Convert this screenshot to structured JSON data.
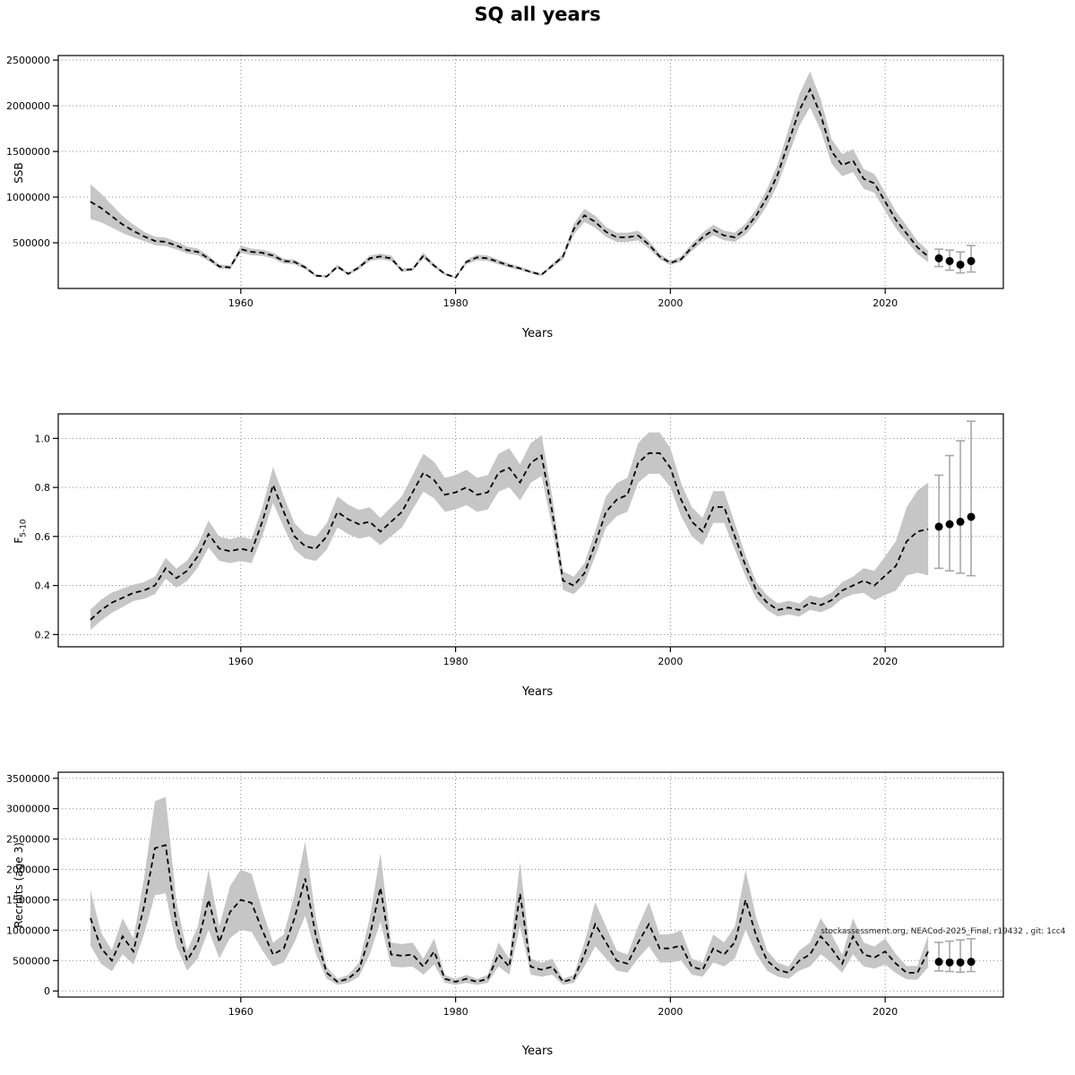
{
  "title": "SQ all years",
  "years": [
    1946,
    1947,
    1948,
    1949,
    1950,
    1951,
    1952,
    1953,
    1954,
    1955,
    1956,
    1957,
    1958,
    1959,
    1960,
    1961,
    1962,
    1963,
    1964,
    1965,
    1966,
    1967,
    1968,
    1969,
    1970,
    1971,
    1972,
    1973,
    1974,
    1975,
    1976,
    1977,
    1978,
    1979,
    1980,
    1981,
    1982,
    1983,
    1984,
    1985,
    1986,
    1987,
    1988,
    1989,
    1990,
    1991,
    1992,
    1993,
    1994,
    1995,
    1996,
    1997,
    1998,
    1999,
    2000,
    2001,
    2002,
    2003,
    2004,
    2005,
    2006,
    2007,
    2008,
    2009,
    2010,
    2011,
    2012,
    2013,
    2014,
    2015,
    2016,
    2017,
    2018,
    2019,
    2020,
    2021,
    2022,
    2023,
    2024
  ],
  "colors": {
    "band": "#c6c6c6",
    "line": "#000000",
    "grid": "#888888",
    "axis": "#000000",
    "errbar": "#a8a8a8",
    "dot": "#000000"
  },
  "chart_data": [
    {
      "type": "line",
      "name": "ssb-panel",
      "ylabel": {
        "main": "SSB",
        "sub": ""
      },
      "xlabel": "Years",
      "xlim": [
        1943,
        2031
      ],
      "ylim": [
        0,
        2550000
      ],
      "x_ticks": [
        1960,
        1980,
        2000,
        2020
      ],
      "y_ticks": [
        500000,
        1000000,
        1500000,
        2000000,
        2500000
      ],
      "y_tick_labels": [
        "500000",
        "1000000",
        "1500000",
        "2000000",
        "2500000"
      ],
      "band": {
        "frac": 0.09,
        "first": {
          "n": 5,
          "frac": 0.2
        },
        "last": {
          "n": 6,
          "frac": 0.18
        }
      },
      "mean": [
        950000,
        880000,
        790000,
        700000,
        630000,
        570000,
        520000,
        510000,
        470000,
        420000,
        400000,
        330000,
        240000,
        230000,
        430000,
        400000,
        390000,
        360000,
        300000,
        290000,
        230000,
        140000,
        130000,
        240000,
        160000,
        230000,
        330000,
        350000,
        330000,
        200000,
        210000,
        360000,
        250000,
        160000,
        120000,
        290000,
        340000,
        330000,
        290000,
        250000,
        220000,
        180000,
        150000,
        250000,
        350000,
        650000,
        800000,
        730000,
        620000,
        560000,
        560000,
        580000,
        480000,
        350000,
        280000,
        320000,
        450000,
        560000,
        640000,
        580000,
        560000,
        650000,
        800000,
        1000000,
        1250000,
        1600000,
        1950000,
        2180000,
        1900000,
        1500000,
        1350000,
        1400000,
        1200000,
        1150000,
        950000,
        750000,
        600000,
        450000,
        350000
      ],
      "forecast": {
        "years": [
          2025,
          2026,
          2027,
          2028
        ],
        "value": [
          330000,
          300000,
          260000,
          300000
        ],
        "lo": [
          240000,
          200000,
          170000,
          180000
        ],
        "hi": [
          430000,
          420000,
          400000,
          470000
        ]
      }
    },
    {
      "type": "line",
      "name": "f-panel",
      "ylabel": {
        "main": "F",
        "sub": "5-10"
      },
      "xlabel": "Years",
      "xlim": [
        1943,
        2031
      ],
      "ylim": [
        0.15,
        1.1
      ],
      "x_ticks": [
        1960,
        1980,
        2000,
        2020
      ],
      "y_ticks": [
        0.2,
        0.4,
        0.6,
        0.8,
        1.0
      ],
      "y_tick_labels": [
        "0.2",
        "0.4",
        "0.6",
        "0.8",
        "1.0"
      ],
      "band": {
        "frac": 0.09,
        "first": {
          "n": 4,
          "frac": 0.16
        },
        "last": {
          "n": 8,
          "frac": 0.3
        }
      },
      "mean": [
        0.26,
        0.3,
        0.33,
        0.35,
        0.37,
        0.38,
        0.4,
        0.47,
        0.43,
        0.46,
        0.52,
        0.61,
        0.55,
        0.54,
        0.55,
        0.54,
        0.66,
        0.81,
        0.7,
        0.6,
        0.56,
        0.55,
        0.6,
        0.7,
        0.67,
        0.65,
        0.66,
        0.62,
        0.66,
        0.7,
        0.78,
        0.86,
        0.83,
        0.77,
        0.78,
        0.8,
        0.77,
        0.78,
        0.86,
        0.88,
        0.82,
        0.9,
        0.93,
        0.7,
        0.42,
        0.4,
        0.45,
        0.57,
        0.7,
        0.75,
        0.77,
        0.9,
        0.94,
        0.94,
        0.88,
        0.75,
        0.66,
        0.62,
        0.72,
        0.72,
        0.6,
        0.48,
        0.38,
        0.33,
        0.3,
        0.31,
        0.3,
        0.33,
        0.32,
        0.34,
        0.38,
        0.4,
        0.42,
        0.4,
        0.44,
        0.48,
        0.58,
        0.62,
        0.63
      ],
      "forecast": {
        "years": [
          2025,
          2026,
          2027,
          2028
        ],
        "value": [
          0.64,
          0.65,
          0.66,
          0.68
        ],
        "lo": [
          0.47,
          0.46,
          0.45,
          0.44
        ],
        "hi": [
          0.85,
          0.93,
          0.99,
          1.07
        ]
      }
    },
    {
      "type": "line",
      "name": "recruits-panel",
      "ylabel": {
        "main": "Recruits (age 3)",
        "sub": ""
      },
      "xlabel": "Years",
      "xlim": [
        1943,
        2031
      ],
      "ylim": [
        -100000,
        3600000
      ],
      "x_ticks": [
        1960,
        1980,
        2000,
        2020
      ],
      "y_ticks": [
        0,
        500000,
        1000000,
        1500000,
        2000000,
        2500000,
        3000000,
        3500000
      ],
      "y_tick_labels": [
        "0",
        "500000",
        "1000000",
        "1500000",
        "2000000",
        "2500000",
        "3000000",
        "3500000"
      ],
      "band": {
        "frac": 0.33,
        "first": {
          "n": 3,
          "frac": 0.38
        },
        "last": {
          "n": 5,
          "frac": 0.4
        }
      },
      "mean": [
        1200000,
        700000,
        500000,
        900000,
        650000,
        1400000,
        2350000,
        2400000,
        1100000,
        500000,
        800000,
        1500000,
        800000,
        1300000,
        1500000,
        1450000,
        1000000,
        600000,
        700000,
        1200000,
        1850000,
        900000,
        300000,
        150000,
        200000,
        350000,
        900000,
        1700000,
        600000,
        580000,
        600000,
        400000,
        650000,
        200000,
        150000,
        200000,
        150000,
        200000,
        600000,
        400000,
        1600000,
        400000,
        350000,
        400000,
        150000,
        200000,
        600000,
        1100000,
        800000,
        500000,
        450000,
        800000,
        1100000,
        700000,
        700000,
        750000,
        400000,
        350000,
        700000,
        600000,
        800000,
        1500000,
        900000,
        500000,
        350000,
        300000,
        500000,
        600000,
        900000,
        700000,
        450000,
        900000,
        600000,
        550000,
        650000,
        450000,
        300000,
        300000,
        650000
      ],
      "forecast": {
        "years": [
          2025,
          2026,
          2027,
          2028
        ],
        "value": [
          480000,
          470000,
          470000,
          480000
        ],
        "lo": [
          330000,
          320000,
          310000,
          320000
        ],
        "hi": [
          800000,
          820000,
          840000,
          860000
        ]
      },
      "annotation": {
        "text": "stockassessment.org, NEACod-2025_Final, r19432 , git: 1cc4",
        "x": 2014,
        "y": 950000
      }
    }
  ]
}
